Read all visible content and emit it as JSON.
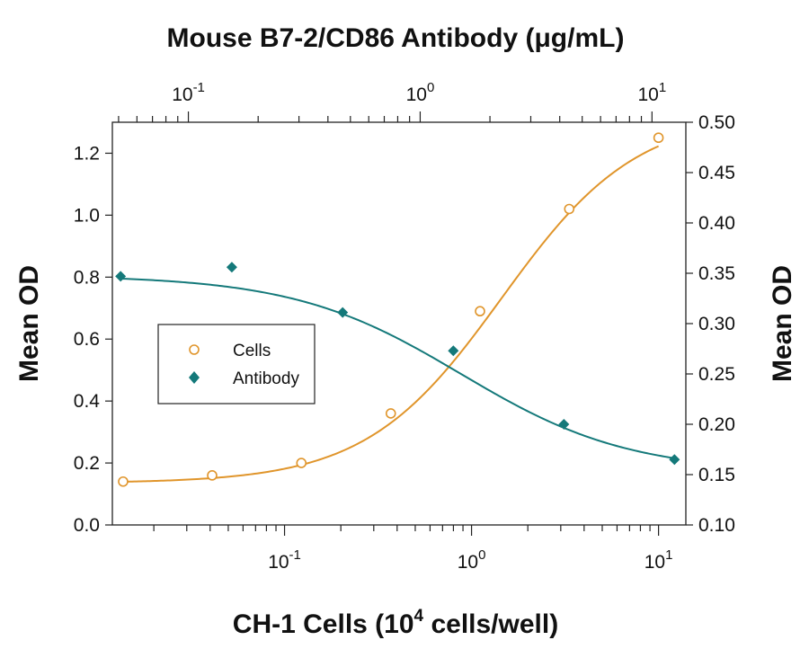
{
  "chart_data": {
    "type": "scatter",
    "title": "Mouse B7-2/CD86 Antibody (μg/mL)",
    "xlabel": "CH-1 Cells (10⁴ cells/well)",
    "ylabel_left": "Mean OD",
    "ylabel_right": "Mean OD",
    "x_bottom": {
      "scale": "log",
      "range": [
        0.012,
        14
      ],
      "ticks": [
        {
          "value": 0.1,
          "base": "10",
          "exp": "-1"
        },
        {
          "value": 1,
          "base": "10",
          "exp": "0"
        },
        {
          "value": 10,
          "base": "10",
          "exp": "1"
        }
      ]
    },
    "x_top": {
      "scale": "log",
      "range": [
        0.047,
        14
      ],
      "ticks": [
        {
          "value": 0.1,
          "base": "10",
          "exp": "-1"
        },
        {
          "value": 1,
          "base": "10",
          "exp": "0"
        },
        {
          "value": 10,
          "base": "10",
          "exp": "1"
        }
      ]
    },
    "y_left": {
      "range": [
        0.0,
        1.3
      ],
      "ticks": [
        "0.0",
        "0.2",
        "0.4",
        "0.6",
        "0.8",
        "1.0",
        "1.2"
      ]
    },
    "y_right": {
      "range": [
        0.1,
        0.5
      ],
      "ticks": [
        "0.10",
        "0.15",
        "0.20",
        "0.25",
        "0.30",
        "0.35",
        "0.40",
        "0.45",
        "0.50"
      ]
    },
    "legend": {
      "position": "left-middle"
    },
    "series": [
      {
        "name": "Cells",
        "axis": "bottom-left",
        "marker": "open-circle",
        "color": "#E0952B",
        "points": [
          {
            "x": 0.0137,
            "y": 0.14
          },
          {
            "x": 0.041,
            "y": 0.16
          },
          {
            "x": 0.123,
            "y": 0.2
          },
          {
            "x": 0.37,
            "y": 0.36
          },
          {
            "x": 1.11,
            "y": 0.69
          },
          {
            "x": 3.33,
            "y": 1.02
          },
          {
            "x": 10.0,
            "y": 1.25
          }
        ],
        "curve": {
          "bottom": 0.135,
          "top": 1.33,
          "ec50": 1.45,
          "hill": 1.2
        }
      },
      {
        "name": "Antibody",
        "axis": "top-right",
        "marker": "filled-diamond",
        "color": "#14797A",
        "points": [
          {
            "x": 0.051,
            "y": 0.347
          },
          {
            "x": 0.154,
            "y": 0.356
          },
          {
            "x": 0.463,
            "y": 0.311
          },
          {
            "x": 1.39,
            "y": 0.273
          },
          {
            "x": 4.17,
            "y": 0.2
          },
          {
            "x": 12.5,
            "y": 0.165
          }
        ],
        "curve": {
          "top": 0.348,
          "bottom": 0.152,
          "ec50": 1.5,
          "hill": 1.2
        }
      }
    ]
  }
}
